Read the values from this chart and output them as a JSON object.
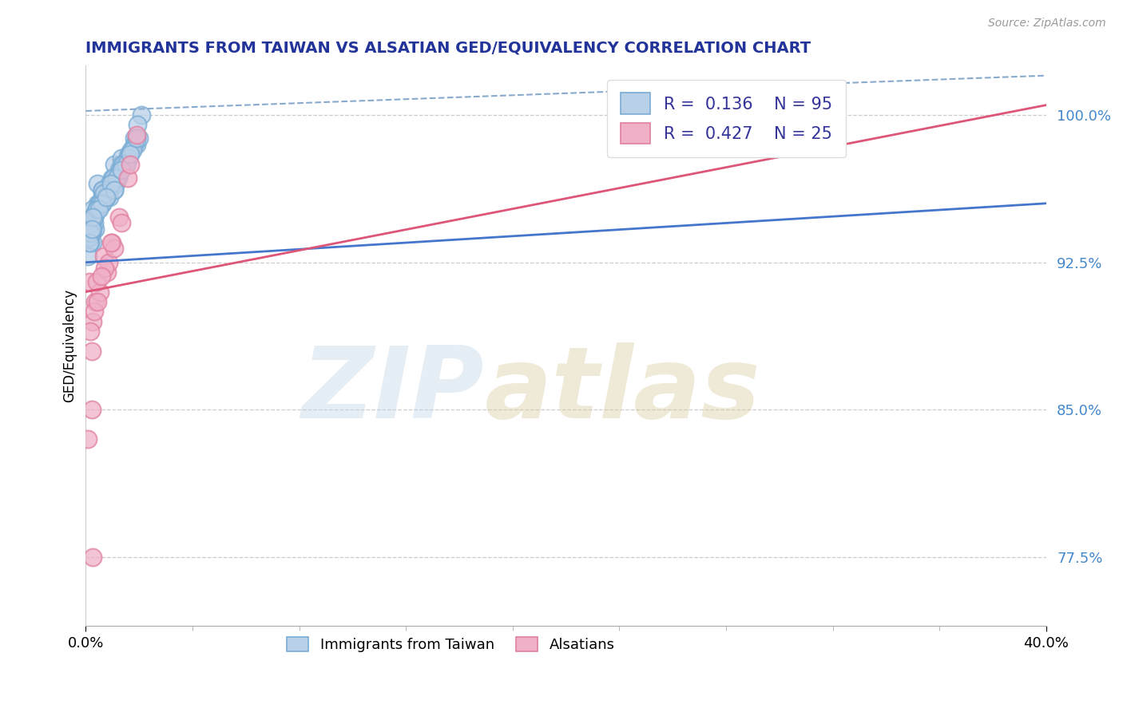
{
  "title": "IMMIGRANTS FROM TAIWAN VS ALSATIAN GED/EQUIVALENCY CORRELATION CHART",
  "source": "Source: ZipAtlas.com",
  "ylabel": "GED/Equivalency",
  "yticks": [
    77.5,
    85.0,
    92.5,
    100.0
  ],
  "ytick_labels": [
    "77.5%",
    "85.0%",
    "92.5%",
    "100.0%"
  ],
  "xtick_labels": [
    "0.0%",
    "40.0%"
  ],
  "xmin": 0.0,
  "xmax": 40.0,
  "ymin": 74.0,
  "ymax": 102.5,
  "blue_R": "0.136",
  "blue_N": "95",
  "pink_R": "0.427",
  "pink_N": "25",
  "blue_fill": "#b8d0e8",
  "blue_edge": "#7aacd4",
  "pink_fill": "#f0b0c8",
  "pink_edge": "#e080a0",
  "blue_line_color": "#4477cc",
  "pink_line_color": "#dd5577",
  "dashed_color": "#88aacc",
  "title_color": "#223399",
  "tick_color": "#4488cc",
  "source_color": "#999999",
  "blue_scatter_x": [
    0.5,
    1.2,
    0.8,
    1.5,
    0.3,
    0.7,
    1.3,
    2.1,
    0.4,
    0.5,
    0.15,
    0.3,
    0.9,
    1.0,
    1.7,
    0.4,
    0.7,
    1.1,
    0.35,
    0.8,
    1.8,
    1.2,
    2.0,
    0.6,
    0.2,
    0.1,
    0.8,
    1.4,
    0.3,
    1.5,
    0.5,
    0.25,
    1.15,
    0.85,
    1.75,
    0.95,
    0.6,
    2.3,
    1.3,
    0.4,
    0.7,
    1.6,
    0.45,
    1.05,
    0.75,
    0.15,
    1.8,
    1.2,
    0.65,
    2.0,
    0.35,
    0.9,
    1.35,
    1.45,
    0.25,
    0.55,
    2.15,
    1.1,
    0.8,
    1.65,
    0.3,
    1.0,
    0.65,
    1.9,
    0.2,
    0.85,
    1.25,
    2.1,
    0.5,
    1.4,
    0.4,
    1.75,
    0.7,
    1.15,
    0.35,
    2.2,
    0.6,
    1.55,
    0.95,
    0.45,
    0.75,
    1.95,
    1.3,
    1.7,
    0.7,
    0.15,
    1.05,
    1.85,
    0.55,
    0.3,
    2.1,
    1.2,
    0.85,
    1.5,
    0.25
  ],
  "blue_scatter_y": [
    95.5,
    97.5,
    95.8,
    97.8,
    93.5,
    95.5,
    96.8,
    98.5,
    94.2,
    96.5,
    93.5,
    95.2,
    96.2,
    95.8,
    97.5,
    95.0,
    96.0,
    96.8,
    94.5,
    96.2,
    98.0,
    96.5,
    98.8,
    95.5,
    93.5,
    92.8,
    95.8,
    97.2,
    94.8,
    97.5,
    95.2,
    94.0,
    96.5,
    95.8,
    97.8,
    96.0,
    95.5,
    100.0,
    96.8,
    95.0,
    96.2,
    97.5,
    95.2,
    96.5,
    96.0,
    93.8,
    97.8,
    96.2,
    95.5,
    98.5,
    94.8,
    96.0,
    96.8,
    97.2,
    94.5,
    95.5,
    99.5,
    96.5,
    95.8,
    97.5,
    94.2,
    96.5,
    95.5,
    98.2,
    94.0,
    95.8,
    96.5,
    98.8,
    95.2,
    97.0,
    95.0,
    97.8,
    96.2,
    96.8,
    94.8,
    98.8,
    95.5,
    97.5,
    96.2,
    95.2,
    96.0,
    98.2,
    96.8,
    97.5,
    95.5,
    93.5,
    96.5,
    98.0,
    95.2,
    94.8,
    98.8,
    96.2,
    95.8,
    97.2,
    94.2
  ],
  "pink_scatter_x": [
    0.15,
    0.75,
    0.4,
    1.1,
    0.25,
    0.9,
    1.75,
    0.3,
    0.6,
    1.4,
    0.2,
    0.95,
    0.35,
    1.85,
    0.5,
    1.2,
    0.45,
    0.1,
    0.8,
    2.1,
    1.05,
    0.25,
    0.65,
    1.5,
    0.3
  ],
  "pink_scatter_y": [
    91.5,
    92.8,
    90.5,
    93.5,
    88.0,
    92.0,
    96.8,
    89.5,
    91.0,
    94.8,
    89.0,
    92.5,
    90.0,
    97.5,
    90.5,
    93.2,
    91.5,
    83.5,
    92.2,
    99.0,
    93.5,
    85.0,
    91.8,
    94.5,
    77.5
  ],
  "blue_line_x0": 0.0,
  "blue_line_x1": 40.0,
  "blue_line_y0": 92.5,
  "blue_line_y1": 95.5,
  "pink_line_x0": 0.0,
  "pink_line_x1": 40.0,
  "pink_line_y0": 91.0,
  "pink_line_y1": 100.5,
  "dashed_line_x0": 0.0,
  "dashed_line_x1": 40.0,
  "dashed_line_y0": 100.2,
  "dashed_line_y1": 102.0,
  "legend_blue_label": "R =  0.136    N = 95",
  "legend_pink_label": "R =  0.427    N = 25",
  "bottom_series": [
    "Immigrants from Taiwan",
    "Alsatians"
  ]
}
